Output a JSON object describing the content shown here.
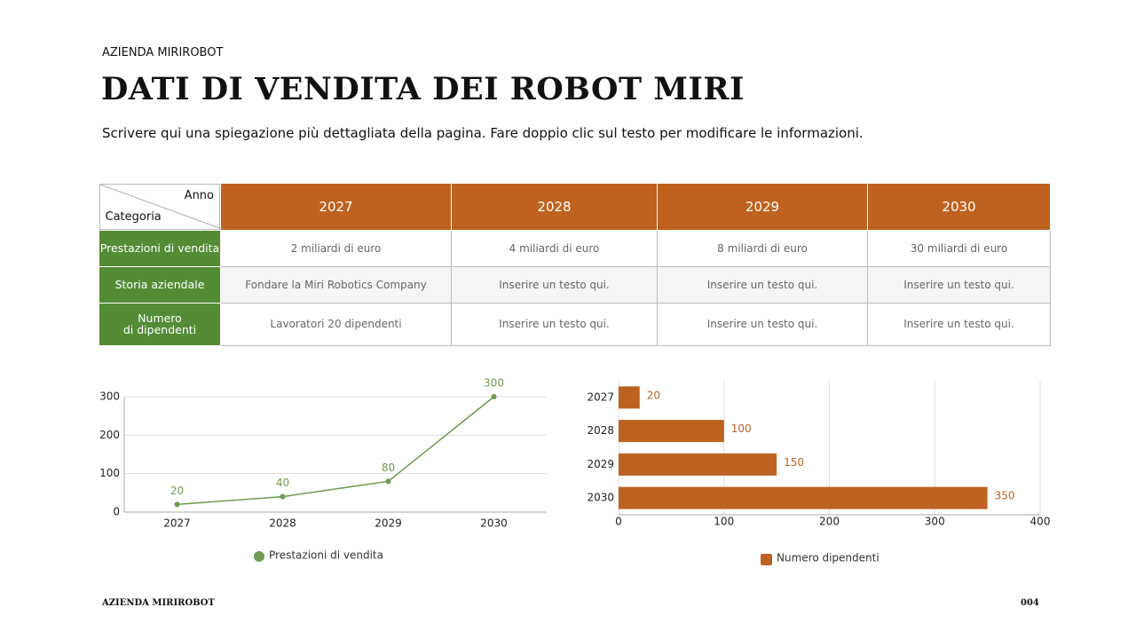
{
  "header": {
    "company": "AZIENDA MIRIROBOT",
    "title": "DATI DI VENDITA DEI ROBOT MIRI",
    "subtitle": "Scrivere qui una spiegazione più dettagliata della pagina. Fare doppio clic sul testo per modificare le informazioni."
  },
  "table": {
    "corner_top": "Anno",
    "corner_bottom": "Categoria",
    "columns": [
      "2027",
      "2028",
      "2029",
      "2030"
    ],
    "rows": [
      {
        "label": "Prestazioni di vendita",
        "cells": [
          "2 miliardi di euro",
          "4 miliardi di euro",
          "8 miliardi di euro",
          "30 miliardi di euro"
        ]
      },
      {
        "label": "Storia aziendale",
        "cells": [
          "Fondare la Miri Robotics Company",
          "Inserire un testo qui.",
          "Inserire un testo qui.",
          "Inserire un testo qui."
        ]
      },
      {
        "label": "Numero\ndi dipendenti",
        "cells": [
          "Lavoratori 20 dipendenti",
          "Inserire un testo qui.",
          "Inserire un testo qui.",
          "Inserire un testo qui."
        ]
      }
    ]
  },
  "chart_data": [
    {
      "type": "line",
      "categories": [
        "2027",
        "2028",
        "2029",
        "2030"
      ],
      "series": [
        {
          "name": "Prestazioni di vendita",
          "color": "#6f9a4f",
          "values": [
            20,
            40,
            80,
            300
          ]
        }
      ],
      "ylim": [
        0,
        300
      ],
      "yticks": [
        0,
        100,
        200,
        300
      ],
      "grid": true,
      "legend": "bottom"
    },
    {
      "type": "bar",
      "orientation": "horizontal",
      "categories": [
        "2027",
        "2028",
        "2029",
        "2030"
      ],
      "series": [
        {
          "name": "Numero dipendenti",
          "color": "#bd6221",
          "values": [
            20,
            100,
            150,
            350
          ]
        }
      ],
      "xlim": [
        0,
        400
      ],
      "xticks": [
        0,
        100,
        200,
        300,
        400
      ],
      "grid": true,
      "legend": "bottom"
    }
  ],
  "footer": {
    "company": "AZIENDA MIRIROBOT",
    "page": "004"
  }
}
